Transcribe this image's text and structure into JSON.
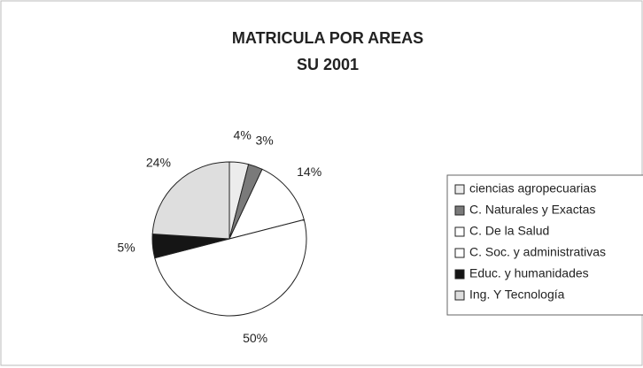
{
  "chart_data": {
    "type": "pie",
    "title": "MATRICULA POR AREAS",
    "subtitle": "SU 2001",
    "categories": [
      "ciencias agropecuarias",
      "C. Naturales y Exactas",
      "C. De la Salud",
      "C. Soc. y administrativas",
      "Educ. y humanidades",
      "Ing. Y Tecnología"
    ],
    "values": [
      4,
      3,
      14,
      50,
      5,
      24
    ],
    "value_labels": [
      "4%",
      "3%",
      "14%",
      "50%",
      "5%",
      "24%"
    ],
    "colors": [
      "#ececec",
      "#7a7a7a",
      "#ffffff",
      "#ffffff",
      "#151515",
      "#dedede"
    ],
    "legend": "right"
  }
}
